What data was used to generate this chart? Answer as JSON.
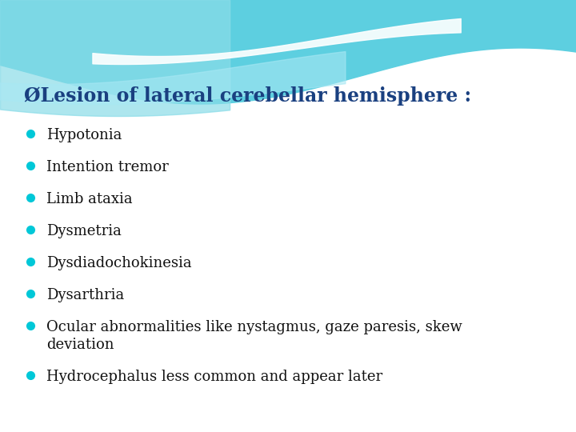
{
  "title": "ØLesion of lateral cerebellar hemisphere :",
  "title_color": "#1a4080",
  "title_fontsize": 17,
  "bullet_color": "#00c8d8",
  "bullet_text_color": "#111111",
  "bullet_fontsize": 13,
  "bullets": [
    "Hypotonia",
    "Intention tremor",
    "Limb ataxia",
    "Dysmetria",
    "Dysdiadochokinesia",
    "Dysarthria",
    "Ocular abnormalities like nystagmus, gaze paresis, skew",
    "deviation",
    "Hydrocephalus less common and appear later"
  ],
  "bg_color": "#ffffff",
  "wave_teal": "#5dcfe0",
  "wave_light": "#a8e8f4",
  "wave_white": "#ffffff"
}
